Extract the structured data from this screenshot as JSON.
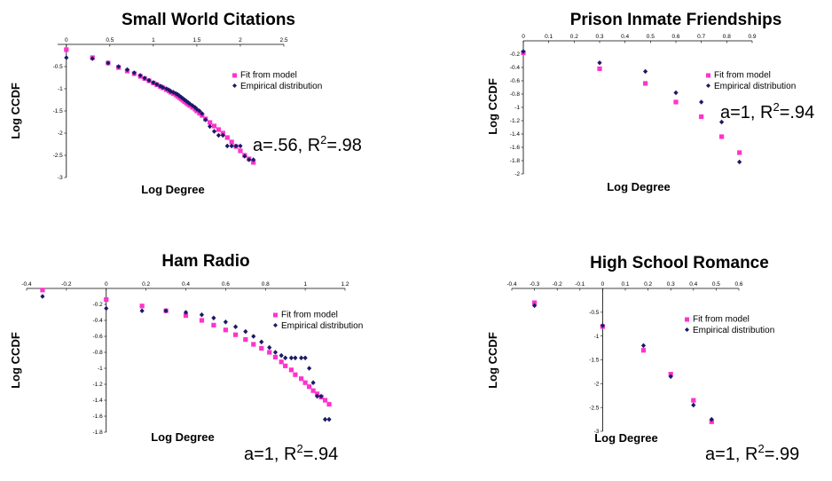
{
  "chart_data": [
    {
      "type": "scatter",
      "title": "Small World Citations",
      "xlabel": "Log Degree",
      "ylabel": "Log CCDF",
      "xlim": [
        -0.1,
        2.5
      ],
      "ylim": [
        -3,
        0
      ],
      "xticks": [
        "0",
        "0.5",
        "1",
        "1.5",
        "2",
        "2.5"
      ],
      "yticks": [
        "-0.5",
        "-1",
        "-1.5",
        "-2",
        "-2.5",
        "-3"
      ],
      "legend": [
        "Fit from model",
        "Empirical distribution"
      ],
      "annotation": {
        "prefix": "a=.56, R",
        "sup": "2",
        "suffix": "=.98"
      },
      "series": [
        {
          "name": "Fit from model",
          "x": [
            0.0,
            0.3,
            0.48,
            0.6,
            0.7,
            0.78,
            0.85,
            0.9,
            0.95,
            1.0,
            1.04,
            1.08,
            1.11,
            1.15,
            1.18,
            1.2,
            1.23,
            1.26,
            1.28,
            1.3,
            1.32,
            1.34,
            1.36,
            1.38,
            1.4,
            1.42,
            1.45,
            1.48,
            1.5,
            1.53,
            1.56,
            1.6,
            1.65,
            1.7,
            1.75,
            1.8,
            1.85,
            1.9,
            1.95,
            2.0,
            2.05,
            2.1,
            2.15
          ],
          "y": [
            -0.12,
            -0.3,
            -0.42,
            -0.52,
            -0.6,
            -0.66,
            -0.72,
            -0.77,
            -0.82,
            -0.87,
            -0.91,
            -0.95,
            -0.98,
            -1.02,
            -1.05,
            -1.08,
            -1.11,
            -1.14,
            -1.17,
            -1.2,
            -1.23,
            -1.26,
            -1.29,
            -1.32,
            -1.35,
            -1.38,
            -1.42,
            -1.46,
            -1.5,
            -1.55,
            -1.6,
            -1.68,
            -1.76,
            -1.84,
            -1.92,
            -2.0,
            -2.1,
            -2.2,
            -2.3,
            -2.4,
            -2.5,
            -2.58,
            -2.66
          ]
        },
        {
          "name": "Empirical distribution",
          "x": [
            0.0,
            0.3,
            0.48,
            0.6,
            0.7,
            0.78,
            0.85,
            0.9,
            0.95,
            1.0,
            1.04,
            1.08,
            1.11,
            1.15,
            1.18,
            1.2,
            1.23,
            1.26,
            1.28,
            1.3,
            1.32,
            1.34,
            1.36,
            1.38,
            1.4,
            1.42,
            1.45,
            1.48,
            1.5,
            1.53,
            1.56,
            1.6,
            1.65,
            1.7,
            1.75,
            1.8,
            1.85,
            1.9,
            1.95,
            2.0,
            2.05,
            2.1,
            2.15
          ],
          "y": [
            -0.3,
            -0.32,
            -0.42,
            -0.5,
            -0.57,
            -0.64,
            -0.7,
            -0.76,
            -0.81,
            -0.86,
            -0.9,
            -0.94,
            -0.97,
            -1.0,
            -1.03,
            -1.06,
            -1.08,
            -1.11,
            -1.13,
            -1.16,
            -1.19,
            -1.22,
            -1.25,
            -1.28,
            -1.31,
            -1.34,
            -1.38,
            -1.42,
            -1.46,
            -1.5,
            -1.56,
            -1.7,
            -1.85,
            -1.96,
            -2.05,
            -2.05,
            -2.29,
            -2.29,
            -2.29,
            -2.29,
            -2.52,
            -2.6,
            -2.6
          ]
        }
      ]
    },
    {
      "type": "scatter",
      "title": "Prison Inmate Friendships",
      "xlabel": "Log Degree",
      "ylabel": "Log CCDF",
      "xlim": [
        0,
        0.9
      ],
      "ylim": [
        -2,
        0
      ],
      "xticks": [
        "0",
        "0.1",
        "0.2",
        "0.3",
        "0.4",
        "0.5",
        "0.6",
        "0.7",
        "0.8",
        "0.9"
      ],
      "yticks": [
        "-0.2",
        "-0.4",
        "-0.6",
        "-0.8",
        "-1",
        "-1.2",
        "-1.4",
        "-1.6",
        "-1.8",
        "-2"
      ],
      "legend": [
        "Fit from model",
        "Empirical distribution"
      ],
      "annotation": {
        "prefix": "a=1, R",
        "sup": "2",
        "suffix": "=.94"
      },
      "series": [
        {
          "name": "Fit from model",
          "x": [
            0.0,
            0.3,
            0.48,
            0.6,
            0.7,
            0.78,
            0.85
          ],
          "y": [
            -0.18,
            -0.42,
            -0.64,
            -0.92,
            -1.14,
            -1.44,
            -1.68
          ]
        },
        {
          "name": "Empirical distribution",
          "x": [
            0.0,
            0.3,
            0.48,
            0.6,
            0.7,
            0.78,
            0.85
          ],
          "y": [
            -0.16,
            -0.33,
            -0.46,
            -0.78,
            -0.92,
            -1.22,
            -1.82
          ]
        }
      ]
    },
    {
      "type": "scatter",
      "title": "Ham Radio",
      "xlabel": "Log Degree",
      "ylabel": "Log CCDF",
      "xlim": [
        -0.4,
        1.2
      ],
      "ylim": [
        -1.8,
        0
      ],
      "xticks": [
        "-0.4",
        "-0.2",
        "0",
        "0.2",
        "0.4",
        "0.6",
        "0.8",
        "1",
        "1.2"
      ],
      "yticks": [
        "-0.2",
        "-0.4",
        "-0.6",
        "-0.8",
        "-1",
        "-1.2",
        "-1.4",
        "-1.6",
        "-1.8"
      ],
      "legend": [
        "Fit from model",
        "Empirical distribution"
      ],
      "annotation": {
        "prefix": "a=1, R",
        "sup": "2",
        "suffix": "=.94"
      },
      "series": [
        {
          "name": "Fit from model",
          "x": [
            -0.32,
            0.0,
            0.18,
            0.3,
            0.4,
            0.48,
            0.54,
            0.6,
            0.65,
            0.7,
            0.74,
            0.78,
            0.82,
            0.85,
            0.88,
            0.9,
            0.93,
            0.95,
            0.98,
            1.0,
            1.02,
            1.04,
            1.06,
            1.08,
            1.1,
            1.12
          ],
          "y": [
            -0.02,
            -0.14,
            -0.22,
            -0.28,
            -0.34,
            -0.4,
            -0.46,
            -0.52,
            -0.58,
            -0.64,
            -0.7,
            -0.75,
            -0.8,
            -0.86,
            -0.92,
            -0.97,
            -1.02,
            -1.08,
            -1.13,
            -1.18,
            -1.23,
            -1.28,
            -1.32,
            -1.36,
            -1.4,
            -1.45
          ]
        },
        {
          "name": "Empirical distribution",
          "x": [
            -0.32,
            0.0,
            0.18,
            0.3,
            0.4,
            0.48,
            0.54,
            0.6,
            0.65,
            0.7,
            0.74,
            0.78,
            0.82,
            0.85,
            0.88,
            0.9,
            0.93,
            0.95,
            0.98,
            1.0,
            1.02,
            1.04,
            1.06,
            1.08,
            1.1,
            1.12
          ],
          "y": [
            -0.1,
            -0.25,
            -0.28,
            -0.28,
            -0.3,
            -0.33,
            -0.37,
            -0.42,
            -0.48,
            -0.54,
            -0.6,
            -0.67,
            -0.74,
            -0.8,
            -0.84,
            -0.87,
            -0.87,
            -0.87,
            -0.87,
            -0.87,
            -1.0,
            -1.18,
            -1.35,
            -1.35,
            -1.64,
            -1.64
          ]
        }
      ]
    },
    {
      "type": "scatter",
      "title": "High School Romance",
      "xlabel": "Log Degree",
      "ylabel": "Log CCDF",
      "xlim": [
        -0.4,
        0.6
      ],
      "ylim": [
        -3,
        0
      ],
      "xticks": [
        "-0.4",
        "-0.3",
        "-0.2",
        "-0.1",
        "0",
        "0.1",
        "0.2",
        "0.3",
        "0.4",
        "0.5",
        "0.6"
      ],
      "yticks": [
        "-0.5",
        "-1",
        "-1.5",
        "-2",
        "-2.5",
        "-3"
      ],
      "legend": [
        "Fit from model",
        "Empirical distribution"
      ],
      "annotation": {
        "prefix": "a=1, R",
        "sup": "2",
        "suffix": "=.99"
      },
      "series": [
        {
          "name": "Fit from model",
          "x": [
            -0.3,
            0.0,
            0.18,
            0.3,
            0.4,
            0.48
          ],
          "y": [
            -0.3,
            -0.8,
            -1.3,
            -1.8,
            -2.35,
            -2.8
          ]
        },
        {
          "name": "Empirical distribution",
          "x": [
            -0.3,
            0.0,
            0.18,
            0.3,
            0.4,
            0.48
          ],
          "y": [
            -0.36,
            -0.78,
            -1.2,
            -1.85,
            -2.45,
            -2.75
          ]
        }
      ]
    }
  ],
  "colors": {
    "fit": "#ff33cc",
    "empirical": "#1a1a66",
    "axis": "#000000"
  }
}
